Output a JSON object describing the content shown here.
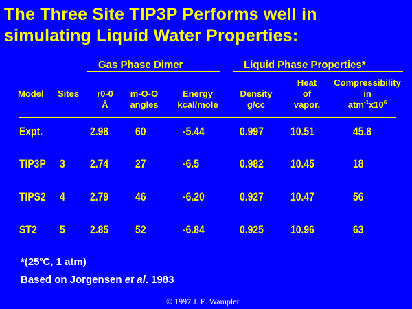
{
  "title": {
    "line1": "The Three Site TIP3P Performs well in",
    "line2": "simulating Liquid Water Properties:"
  },
  "groups": {
    "gas": "Gas Phase Dimer",
    "liquid": "Liquid Phase Properties*"
  },
  "headers": {
    "model": "Model",
    "sites": "Sites",
    "r00_1": "r0-0",
    "r00_2": "Å",
    "mOO_1": "m-O-O",
    "mOO_2": "angles",
    "energy_1": "Energy",
    "energy_2": "kcal/mole",
    "density_1": "Density",
    "density_2": "g/cc",
    "heat_1": "Heat",
    "heat_2": "of",
    "heat_3": "vapor.",
    "comp_1": "Compressibility",
    "comp_2": "in",
    "comp_3_pre": "atm",
    "comp_3_sup1": "-1",
    "comp_3_mid": "x10",
    "comp_3_sup2": "6"
  },
  "rows": [
    {
      "model": "Expt.",
      "sites": "",
      "r00": "2.98",
      "angle": "60",
      "energy": "-5.44",
      "density": "0.997",
      "heat": "10.51",
      "comp": "45.8"
    },
    {
      "model": "TIP3P",
      "sites": "3",
      "r00": "2.74",
      "angle": "27",
      "energy": "-6.5",
      "density": "0.982",
      "heat": "10.45",
      "comp": "18"
    },
    {
      "model": "TIPS2",
      "sites": "4",
      "r00": "2.79",
      "angle": "46",
      "energy": "-6.20",
      "density": "0.927",
      "heat": "10.47",
      "comp": "56"
    },
    {
      "model": "ST2",
      "sites": "5",
      "r00": "2.85",
      "angle": "52",
      "energy": "-6.84",
      "density": "0.925",
      "heat": "10.96",
      "comp": "63"
    }
  ],
  "footnote": {
    "conditions_pre": "*(25",
    "conditions_sup": "o",
    "conditions_post": "C, 1 atm)",
    "ref_pre": "Based on Jorgensen ",
    "ref_italic": "et al",
    "ref_post": ". 1983"
  },
  "copyright": "© 1997 J. E. Wampler",
  "colors": {
    "background": "#0000fe",
    "text": "#ffff00",
    "note": "#ffffff"
  }
}
